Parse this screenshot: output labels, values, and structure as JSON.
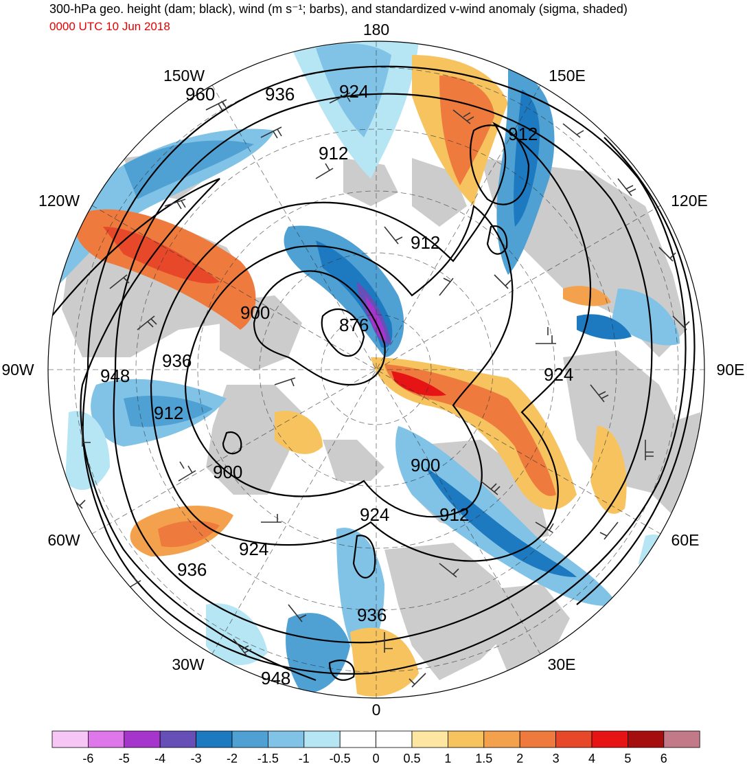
{
  "header": {
    "title": "300-hPa geo. height (dam; black), wind (m s⁻¹; barbs), and standardized v-wind anomaly (sigma, shaded)",
    "timestamp": "0000 UTC 10 Jun 2018",
    "timestamp_color": "#e60000"
  },
  "map": {
    "projection": "north-polar-stereographic",
    "longitude_labels": [
      "180",
      "150E",
      "120E",
      "90E",
      "60E",
      "30E",
      "0",
      "30W",
      "60W",
      "90W",
      "120W",
      "150W"
    ],
    "contour_labels": [
      "960",
      "936",
      "924",
      "912",
      "912",
      "912",
      "876",
      "900",
      "936",
      "948",
      "912",
      "924",
      "900",
      "900",
      "912",
      "924",
      "936",
      "924",
      "936",
      "948"
    ],
    "land_color": "#cccccc",
    "contour_color": "#000000"
  },
  "colorbar": {
    "ticks": [
      "-6",
      "-5",
      "-4",
      "-3",
      "-2",
      "-1.5",
      "-1",
      "-0.5",
      "0",
      "0.5",
      "1",
      "1.5",
      "2",
      "3",
      "4",
      "5",
      "6"
    ],
    "colors": [
      "#f6c6f4",
      "#dd77ea",
      "#a635cb",
      "#6650b8",
      "#1d79c0",
      "#4fa0d3",
      "#80c3e6",
      "#b6e6f4",
      "#ffffff",
      "#ffffff",
      "#fde6a2",
      "#f7c35f",
      "#f4a14d",
      "#ee7b3d",
      "#e8482a",
      "#e61414",
      "#a40e0e",
      "#c27a88"
    ]
  }
}
